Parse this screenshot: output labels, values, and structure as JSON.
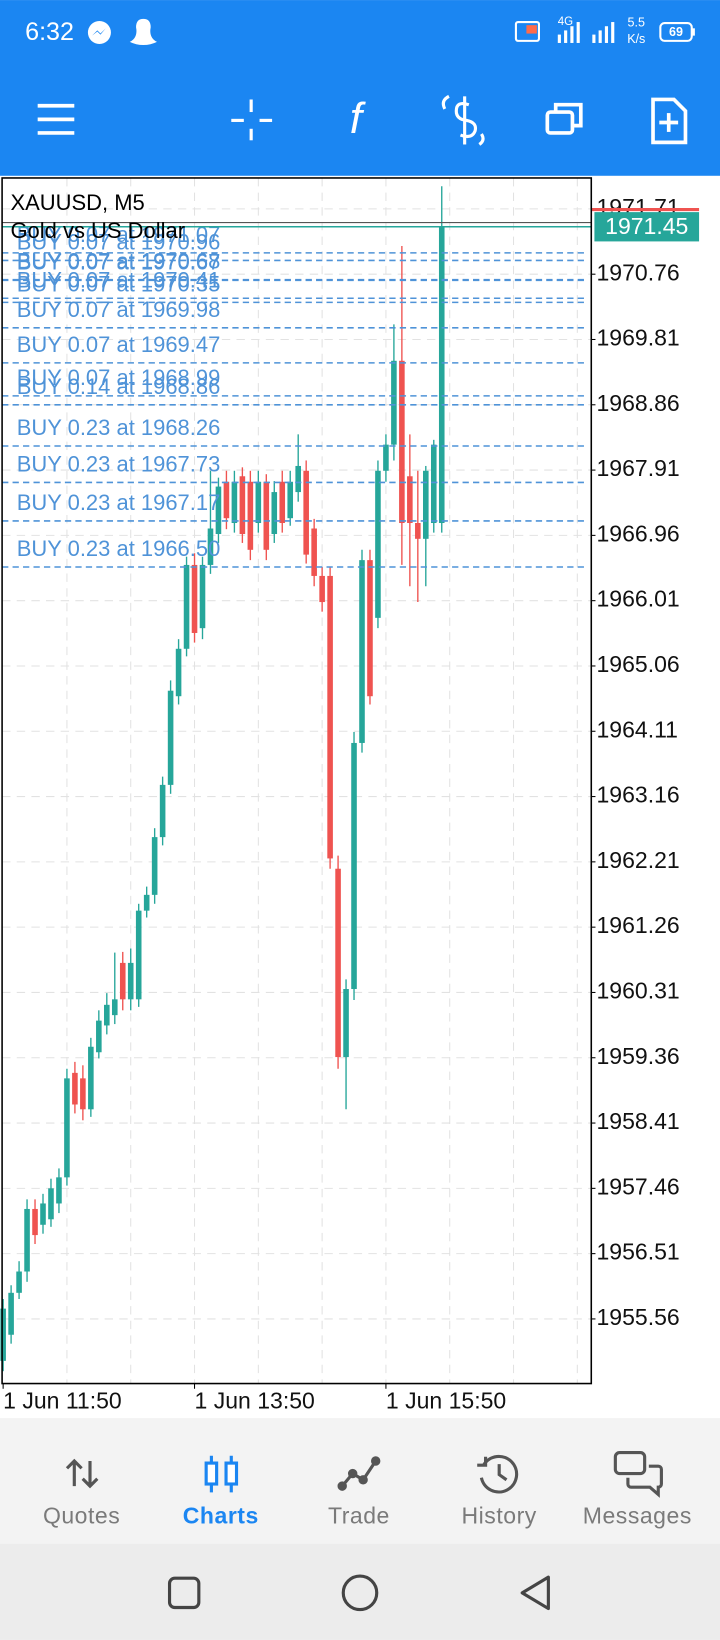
{
  "status_bar": {
    "time": "6:32",
    "network": "4G",
    "speed": "5.5",
    "speed_unit": "K/s",
    "battery": "69"
  },
  "chart_data": {
    "type": "candlestick",
    "symbol_label": "XAUUSD, M5",
    "title": "Gold vs US Dollar",
    "up_color": "#26a69a",
    "down_color": "#ef5350",
    "order_color": "#4f93d8",
    "candles": [
      [
        1954.95,
        1955.85,
        1954.8,
        1955.71
      ],
      [
        1955.33,
        1956.05,
        1955.2,
        1955.94
      ],
      [
        1955.94,
        1956.4,
        1955.85,
        1956.25
      ],
      [
        1956.25,
        1957.3,
        1956.1,
        1957.16
      ],
      [
        1957.16,
        1957.3,
        1956.65,
        1956.78
      ],
      [
        1956.93,
        1957.38,
        1956.8,
        1957.24
      ],
      [
        1957.01,
        1957.6,
        1956.9,
        1957.46
      ],
      [
        1957.24,
        1957.75,
        1957.1,
        1957.62
      ],
      [
        1957.62,
        1959.2,
        1957.5,
        1959.06
      ],
      [
        1959.14,
        1959.3,
        1958.55,
        1958.68
      ],
      [
        1959.06,
        1959.25,
        1958.45,
        1958.61
      ],
      [
        1958.61,
        1959.65,
        1958.5,
        1959.52
      ],
      [
        1959.44,
        1960.05,
        1959.35,
        1959.9
      ],
      [
        1959.83,
        1960.3,
        1959.7,
        1960.13
      ],
      [
        1959.98,
        1960.89,
        1959.85,
        1960.21
      ],
      [
        1960.74,
        1960.9,
        1960.05,
        1960.21
      ],
      [
        1960.21,
        1960.95,
        1960.05,
        1960.74
      ],
      [
        1960.21,
        1961.6,
        1960.1,
        1961.5
      ],
      [
        1961.5,
        1961.85,
        1961.4,
        1961.73
      ],
      [
        1961.73,
        1962.7,
        1961.6,
        1962.57
      ],
      [
        1962.57,
        1963.45,
        1962.45,
        1963.33
      ],
      [
        1963.33,
        1964.85,
        1963.2,
        1964.7
      ],
      [
        1964.62,
        1965.45,
        1964.5,
        1965.31
      ],
      [
        1965.31,
        1966.65,
        1965.2,
        1966.53
      ],
      [
        1966.53,
        1966.7,
        1965.4,
        1965.54
      ],
      [
        1965.61,
        1966.65,
        1965.45,
        1966.53
      ],
      [
        1966.53,
        1967.9,
        1966.4,
        1967.06
      ],
      [
        1966.98,
        1967.8,
        1966.85,
        1967.67
      ],
      [
        1967.74,
        1967.9,
        1967.05,
        1967.21
      ],
      [
        1967.14,
        1967.9,
        1967.0,
        1967.74
      ],
      [
        1967.82,
        1967.95,
        1966.85,
        1966.98
      ],
      [
        1967.74,
        1967.9,
        1966.6,
        1966.75
      ],
      [
        1967.14,
        1967.9,
        1967.0,
        1967.74
      ],
      [
        1967.74,
        1967.85,
        1966.6,
        1966.75
      ],
      [
        1966.98,
        1967.75,
        1966.85,
        1967.59
      ],
      [
        1967.74,
        1967.9,
        1967.0,
        1967.14
      ],
      [
        1967.21,
        1967.9,
        1967.1,
        1967.74
      ],
      [
        1967.59,
        1968.43,
        1967.45,
        1967.97
      ],
      [
        1967.9,
        1968.05,
        1966.55,
        1966.68
      ],
      [
        1967.06,
        1967.2,
        1966.22,
        1966.37
      ],
      [
        1966.37,
        1966.5,
        1965.85,
        1965.99
      ],
      [
        1966.37,
        1966.5,
        1962.11,
        1962.26
      ],
      [
        1962.11,
        1962.3,
        1959.2,
        1959.37
      ],
      [
        1959.37,
        1960.5,
        1958.61,
        1960.36
      ],
      [
        1960.36,
        1964.1,
        1960.2,
        1963.94
      ],
      [
        1963.94,
        1966.75,
        1963.8,
        1966.6
      ],
      [
        1966.6,
        1966.75,
        1964.5,
        1964.62
      ],
      [
        1965.76,
        1968.05,
        1965.61,
        1967.9
      ],
      [
        1967.9,
        1968.43,
        1967.74,
        1968.28
      ],
      [
        1968.28,
        1970.03,
        1968.05,
        1969.5
      ],
      [
        1969.5,
        1971.17,
        1966.53,
        1967.14
      ],
      [
        1967.82,
        1968.43,
        1966.22,
        1967.14
      ],
      [
        1967.14,
        1967.9,
        1965.99,
        1966.91
      ],
      [
        1966.91,
        1967.97,
        1966.22,
        1967.9
      ],
      [
        1967.14,
        1968.35,
        1967.0,
        1968.28
      ],
      [
        1967.14,
        1972.04,
        1967.0,
        1971.45
      ]
    ],
    "xlim": [
      -0.13,
      73.75
    ],
    "xticks": [
      {
        "value": 0,
        "label": "1 Jun 11:50"
      },
      {
        "value": 24,
        "label": "1 Jun 13:50"
      },
      {
        "value": 48,
        "label": "1 Jun 15:50"
      }
    ],
    "xgrid": [
      8,
      16,
      24,
      32,
      40,
      48,
      56,
      64,
      72
    ],
    "ylim": [
      1954.62,
      1972.16
    ],
    "yticks": [
      1971.71,
      1970.76,
      1969.81,
      1968.86,
      1967.91,
      1966.96,
      1966.01,
      1965.06,
      1964.11,
      1963.16,
      1962.21,
      1961.26,
      1960.31,
      1959.36,
      1958.41,
      1957.46,
      1956.51,
      1955.56
    ],
    "grid": true,
    "orders": [
      {
        "label": "BUY 0.07 at 1971.07",
        "price": 1971.07
      },
      {
        "label": "BUY 0.07 at 1970.96",
        "price": 1970.96
      },
      {
        "label": "BUY 0.07 at 1970.68",
        "price": 1970.68
      },
      {
        "label": "BUY 0.07 at 1970.67",
        "price": 1970.67
      },
      {
        "label": "BUY 0.07 at 1970.41",
        "price": 1970.41
      },
      {
        "label": "BUY 0.07 at 1970.35",
        "price": 1970.35
      },
      {
        "label": "BUY 0.07 at 1969.98",
        "price": 1969.98
      },
      {
        "label": "BUY 0.07 at 1969.47",
        "price": 1969.47
      },
      {
        "label": "BUY 0.07 at 1968.99",
        "price": 1968.99
      },
      {
        "label": "BUY 0.14 at 1968.86",
        "price": 1968.86
      },
      {
        "label": "BUY 0.23 at 1968.26",
        "price": 1968.26
      },
      {
        "label": "BUY 0.23 at 1967.73",
        "price": 1967.73
      },
      {
        "label": "BUY 0.23 at 1967.17",
        "price": 1967.17
      },
      {
        "label": "BUY 0.23 at 1966.50",
        "price": 1966.5
      }
    ],
    "bid": 1971.45,
    "ask": 1971.7
  },
  "toolbar": {
    "function_icon": "f"
  },
  "bottom_nav": {
    "items": [
      "Quotes",
      "Charts",
      "Trade",
      "History",
      "Messages"
    ],
    "active": 1
  }
}
